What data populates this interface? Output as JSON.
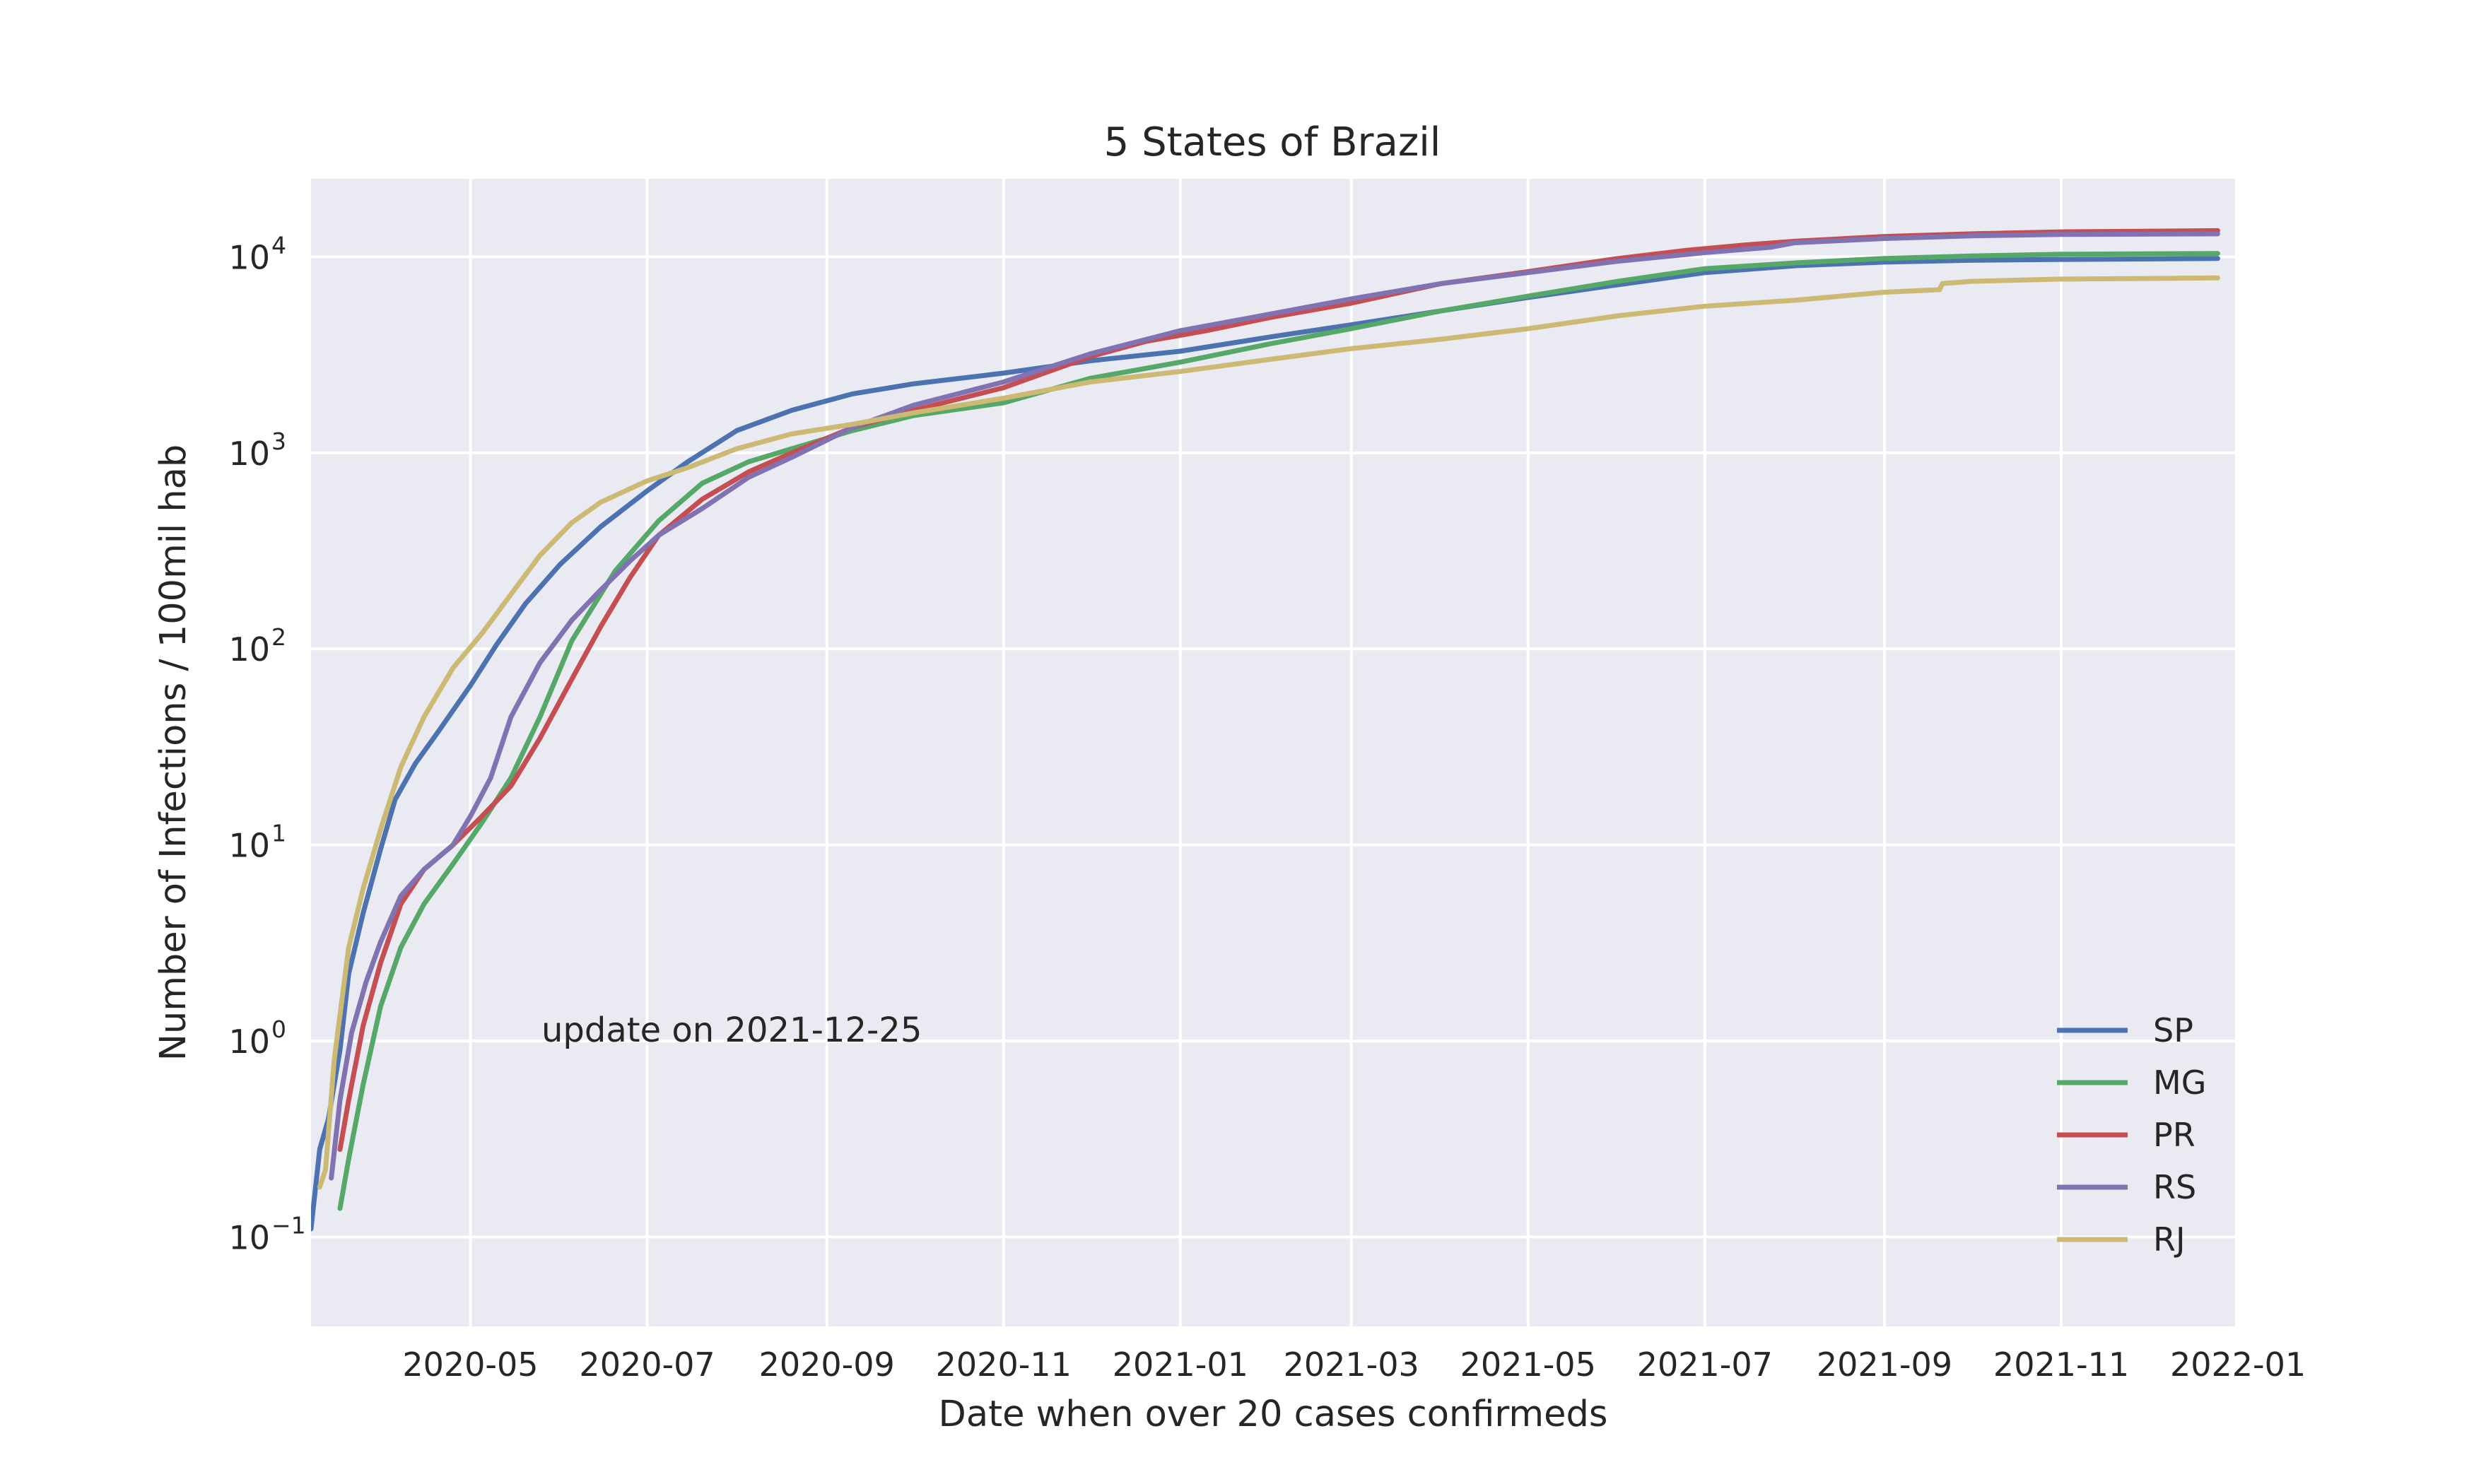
{
  "chart_data": {
    "type": "line",
    "title": "5 States of Brazil",
    "xlabel": "Date when over 20 cases confirmeds",
    "ylabel": "Number of Infections / 100mil hab",
    "yscale": "log",
    "ylim": [
      0.035,
      25000
    ],
    "xlim": [
      "2020-03-07",
      "2021-12-31"
    ],
    "grid": true,
    "legend_position": "lower right",
    "annotation": "update on 2021-12-25",
    "x_ticks": [
      {
        "date": "2020-05-01",
        "label": "2020-05"
      },
      {
        "date": "2020-07-01",
        "label": "2020-07"
      },
      {
        "date": "2020-09-01",
        "label": "2020-09"
      },
      {
        "date": "2020-11-01",
        "label": "2020-11"
      },
      {
        "date": "2021-01-01",
        "label": "2021-01"
      },
      {
        "date": "2021-03-01",
        "label": "2021-03"
      },
      {
        "date": "2021-05-01",
        "label": "2021-05"
      },
      {
        "date": "2021-07-01",
        "label": "2021-07"
      },
      {
        "date": "2021-09-01",
        "label": "2021-09"
      },
      {
        "date": "2021-11-01",
        "label": "2021-11"
      },
      {
        "date": "2022-01-01",
        "label": "2022-01"
      }
    ],
    "y_ticks": [
      {
        "value": 0.1,
        "base": "10",
        "exp": "−1"
      },
      {
        "value": 1,
        "base": "10",
        "exp": "0"
      },
      {
        "value": 10,
        "base": "10",
        "exp": "1"
      },
      {
        "value": 100,
        "base": "10",
        "exp": "2"
      },
      {
        "value": 1000,
        "base": "10",
        "exp": "3"
      },
      {
        "value": 10000,
        "base": "10",
        "exp": "4"
      }
    ],
    "series": [
      {
        "name": "SP",
        "color": "#4c72b0",
        "x": [
          "2020-03-07",
          "2020-03-10",
          "2020-03-13",
          "2020-03-17",
          "2020-03-20",
          "2020-03-25",
          "2020-03-31",
          "2020-04-05",
          "2020-04-12",
          "2020-04-20",
          "2020-05-01",
          "2020-05-10",
          "2020-05-20",
          "2020-06-01",
          "2020-06-15",
          "2020-07-01",
          "2020-07-15",
          "2020-08-01",
          "2020-08-20",
          "2020-09-10",
          "2020-10-01",
          "2020-11-01",
          "2020-12-01",
          "2021-01-01",
          "2021-02-01",
          "2021-03-01",
          "2021-04-01",
          "2021-05-01",
          "2021-06-01",
          "2021-07-01",
          "2021-08-01",
          "2021-09-01",
          "2021-10-01",
          "2021-11-01",
          "2021-12-25"
        ],
        "y": [
          0.11,
          0.28,
          0.4,
          0.9,
          2.2,
          4.5,
          9.5,
          17,
          26,
          38,
          65,
          105,
          170,
          270,
          420,
          640,
          900,
          1300,
          1650,
          2000,
          2250,
          2550,
          2950,
          3300,
          3900,
          4500,
          5300,
          6200,
          7200,
          8300,
          9000,
          9400,
          9600,
          9700,
          9800
        ]
      },
      {
        "name": "MG",
        "color": "#55a868",
        "x": [
          "2020-03-17",
          "2020-03-20",
          "2020-03-25",
          "2020-03-31",
          "2020-04-07",
          "2020-04-15",
          "2020-04-25",
          "2020-05-05",
          "2020-05-15",
          "2020-05-25",
          "2020-06-05",
          "2020-06-20",
          "2020-07-05",
          "2020-07-20",
          "2020-08-05",
          "2020-08-20",
          "2020-09-10",
          "2020-10-01",
          "2020-11-01",
          "2020-12-01",
          "2021-01-01",
          "2021-02-01",
          "2021-03-01",
          "2021-04-01",
          "2021-05-01",
          "2021-06-01",
          "2021-07-01",
          "2021-08-01",
          "2021-09-01",
          "2021-10-01",
          "2021-11-01",
          "2021-12-25"
        ],
        "y": [
          0.14,
          0.25,
          0.6,
          1.5,
          3,
          5,
          8,
          13,
          22,
          45,
          110,
          250,
          450,
          700,
          900,
          1050,
          1300,
          1550,
          1800,
          2400,
          2900,
          3600,
          4300,
          5300,
          6300,
          7500,
          8700,
          9300,
          9800,
          10100,
          10300,
          10400
        ]
      },
      {
        "name": "PR",
        "color": "#c44e52",
        "x": [
          "2020-03-17",
          "2020-03-20",
          "2020-03-25",
          "2020-03-31",
          "2020-04-07",
          "2020-04-15",
          "2020-04-25",
          "2020-05-05",
          "2020-05-15",
          "2020-05-25",
          "2020-06-05",
          "2020-06-15",
          "2020-06-25",
          "2020-07-05",
          "2020-07-20",
          "2020-08-05",
          "2020-08-20",
          "2020-09-10",
          "2020-10-01",
          "2020-11-01",
          "2020-12-01",
          "2020-12-20",
          "2021-01-10",
          "2021-02-01",
          "2021-03-01",
          "2021-04-01",
          "2021-05-01",
          "2021-06-01",
          "2021-06-25",
          "2021-07-15",
          "2021-08-01",
          "2021-09-01",
          "2021-10-01",
          "2021-11-01",
          "2021-12-25"
        ],
        "y": [
          0.28,
          0.5,
          1.2,
          2.5,
          5,
          7.5,
          10,
          14,
          20,
          35,
          70,
          130,
          230,
          380,
          580,
          800,
          1000,
          1350,
          1650,
          2150,
          3100,
          3700,
          4200,
          4900,
          5800,
          7300,
          8400,
          9800,
          10800,
          11500,
          12000,
          12700,
          13100,
          13400,
          13600
        ]
      },
      {
        "name": "RS",
        "color": "#8172b2",
        "x": [
          "2020-03-14",
          "2020-03-17",
          "2020-03-21",
          "2020-03-26",
          "2020-03-31",
          "2020-04-07",
          "2020-04-15",
          "2020-04-25",
          "2020-05-01",
          "2020-05-08",
          "2020-05-15",
          "2020-05-25",
          "2020-06-05",
          "2020-06-15",
          "2020-06-25",
          "2020-07-05",
          "2020-07-20",
          "2020-08-05",
          "2020-08-20",
          "2020-09-10",
          "2020-10-01",
          "2020-11-01",
          "2020-12-01",
          "2021-01-01",
          "2021-02-01",
          "2021-03-01",
          "2021-04-01",
          "2021-05-01",
          "2021-06-01",
          "2021-07-01",
          "2021-07-24",
          "2021-08-01",
          "2021-09-01",
          "2021-10-01",
          "2021-11-01",
          "2021-12-25"
        ],
        "y": [
          0.2,
          0.5,
          1.1,
          2,
          3.2,
          5.5,
          7.5,
          10,
          14,
          22,
          45,
          85,
          140,
          200,
          280,
          380,
          520,
          750,
          950,
          1350,
          1750,
          2300,
          3200,
          4200,
          5100,
          6100,
          7300,
          8300,
          9500,
          10500,
          11200,
          11800,
          12400,
          12800,
          13000,
          13100
        ]
      },
      {
        "name": "RJ",
        "color": "#ccb974",
        "x": [
          "2020-03-10",
          "2020-03-12",
          "2020-03-15",
          "2020-03-20",
          "2020-03-25",
          "2020-03-31",
          "2020-04-07",
          "2020-04-15",
          "2020-04-25",
          "2020-05-05",
          "2020-05-15",
          "2020-05-25",
          "2020-06-05",
          "2020-06-15",
          "2020-07-01",
          "2020-07-15",
          "2020-08-01",
          "2020-08-20",
          "2020-09-10",
          "2020-10-01",
          "2020-11-01",
          "2020-12-01",
          "2021-01-01",
          "2021-02-01",
          "2021-03-01",
          "2021-04-01",
          "2021-05-01",
          "2021-06-01",
          "2021-07-01",
          "2021-08-01",
          "2021-09-01",
          "2021-09-20",
          "2021-09-21",
          "2021-10-01",
          "2021-11-01",
          "2021-12-25"
        ],
        "y": [
          0.18,
          0.22,
          0.8,
          3,
          6,
          12,
          25,
          45,
          80,
          120,
          190,
          300,
          440,
          560,
          720,
          840,
          1050,
          1250,
          1400,
          1600,
          1900,
          2300,
          2600,
          3000,
          3400,
          3800,
          4300,
          5000,
          5600,
          6000,
          6600,
          6800,
          7300,
          7500,
          7700,
          7800
        ]
      }
    ]
  }
}
